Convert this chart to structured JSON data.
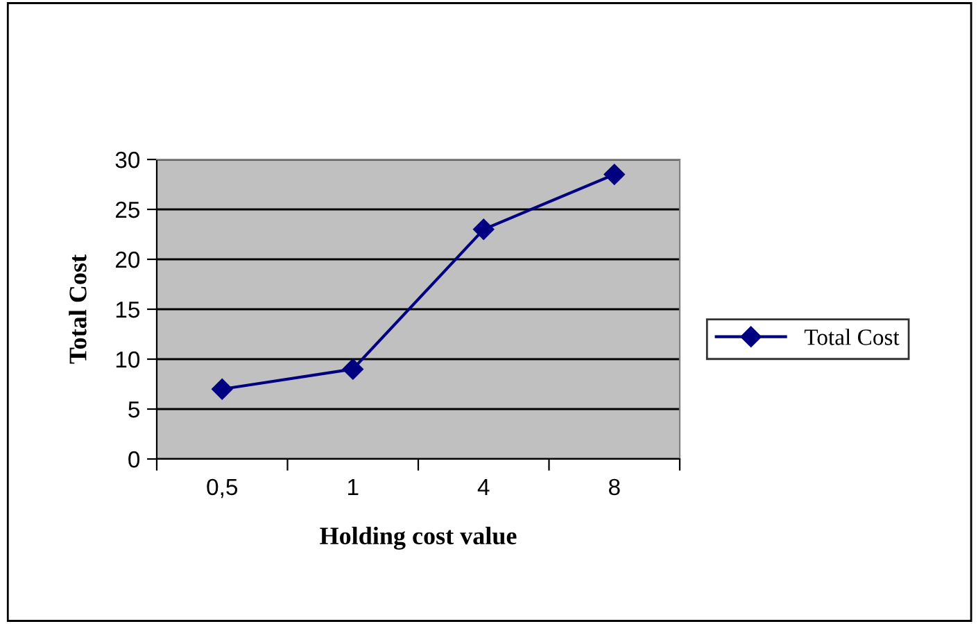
{
  "chart_data": {
    "type": "line",
    "xlabel": "Holding cost value",
    "ylabel": "Total Cost",
    "categories": [
      "0,5",
      "1",
      "4",
      "8"
    ],
    "series": [
      {
        "name": "Total Cost",
        "color": "#000080",
        "values": [
          7,
          9,
          23,
          28.5
        ]
      }
    ],
    "ylim": [
      0,
      30
    ],
    "yticks": [
      0,
      5,
      10,
      15,
      20,
      25,
      30
    ],
    "grid": "y",
    "legend": "right",
    "marker": "diamond",
    "line_style": "solid"
  }
}
